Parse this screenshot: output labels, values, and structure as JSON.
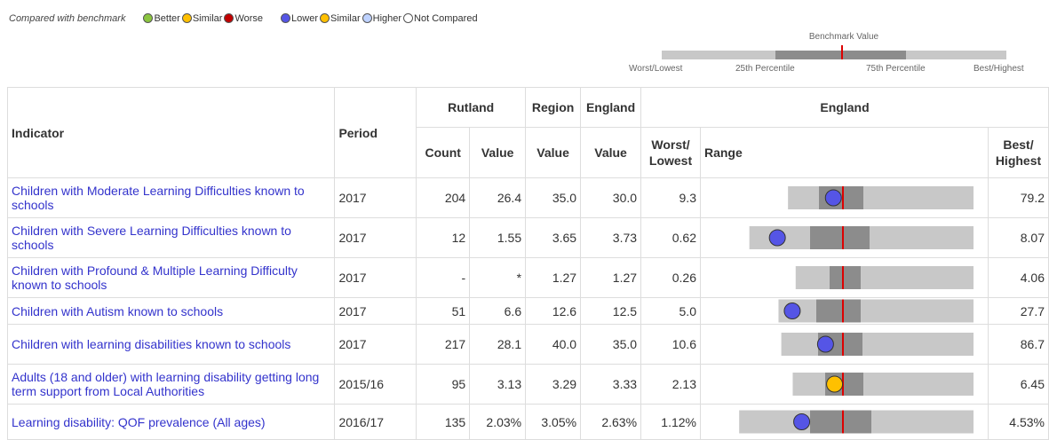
{
  "legend": {
    "label": "Compared with benchmark",
    "set1": [
      {
        "name": "Better",
        "color": "#8bc53f"
      },
      {
        "name": "Similar",
        "color": "#ffc000"
      },
      {
        "name": "Worse",
        "color": "#c00000"
      }
    ],
    "set2": [
      {
        "name": "Lower",
        "color": "#5555e6"
      },
      {
        "name": "Similar",
        "color": "#ffc000"
      },
      {
        "name": "Higher",
        "color": "#bed2ff"
      },
      {
        "name": "Not Compared",
        "color": "#ffffff"
      }
    ]
  },
  "key": {
    "title": "Benchmark Value",
    "labels": [
      "Worst/Lowest",
      "25th Percentile",
      "75th Percentile",
      "Best/Highest"
    ]
  },
  "table": {
    "header_top": {
      "indicator": "Indicator",
      "period": "Period",
      "area": "Rutland",
      "region": "Region",
      "england": "England",
      "group": "England"
    },
    "header_sub": [
      "Count",
      "Value",
      "Value",
      "Value",
      "Worst/ Lowest",
      "Range",
      "Best/ Highest"
    ],
    "rows": [
      {
        "cells": [
          "Children with Moderate Learning Difficulties known to schools",
          "2017",
          "204",
          "26.4",
          "35.0",
          "30.0",
          "9.3",
          "79.2"
        ],
        "marker_color": "#5555e6"
      },
      {
        "cells": [
          "Children with Severe Learning Difficulties known to schools",
          "2017",
          "12",
          "1.55",
          "3.65",
          "3.73",
          "0.62",
          "8.07"
        ],
        "marker_color": "#5555e6"
      },
      {
        "cells": [
          "Children with Profound & Multiple Learning Difficulty known to schools",
          "2017",
          "-",
          "*",
          "1.27",
          "1.27",
          "0.26",
          "4.06"
        ],
        "marker_color": "#5555e6"
      },
      {
        "cells": [
          "Children with Autism known to schools",
          "2017",
          "51",
          "6.6",
          "12.6",
          "12.5",
          "5.0",
          "27.7"
        ],
        "marker_color": "#5555e6"
      },
      {
        "cells": [
          "Children with learning disabilities known to schools",
          "2017",
          "217",
          "28.1",
          "40.0",
          "35.0",
          "10.6",
          "86.7"
        ],
        "marker_color": "#5555e6"
      },
      {
        "cells": [
          "Adults (18 and older) with learning disability getting long term support from Local Authorities",
          "2015/16",
          "95",
          "3.13",
          "3.29",
          "3.33",
          "2.13",
          "6.45"
        ],
        "marker_color": "#ffc000"
      },
      {
        "cells": [
          "Learning disability: QOF prevalence (All ages)",
          "2016/17",
          "135",
          "2.03%",
          "3.05%",
          "2.63%",
          "1.12%",
          "4.53%"
        ],
        "marker_color": "#5555e6"
      }
    ]
  }
}
